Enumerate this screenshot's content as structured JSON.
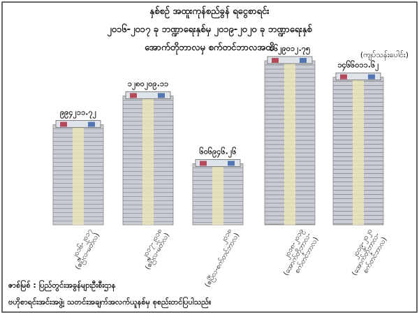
{
  "chart_data": {
    "type": "stack",
    "title": [
      "နှစ်စဉ် အထူးကုန်စည်ခွန် ရငွေစာရင်း",
      "၂၀၁၆-၂၀၁၇ ခု ဘဏ္ဍာရေးနှစ်မှ ၂၀၁၉-၂၀၂၀ ခု ဘဏ္ဍာရေးနှစ်",
      "အောက်တိုဘာလမှ စက်တင်ဘာလအထိ"
    ],
    "unit": "(ကျပ်သန်းပေါင်း)",
    "categories": [
      [
        "၂၀၁၆-၂၀၁၇",
        "(ဧပြီလ-မတ်လ)"
      ],
      [
        "၂၀၁၇-၂၀၁၈",
        "(ဧပြီလ-မတ်လ)"
      ],
      [
        "၂၀၁၈",
        "(ဧပြီလ-စက်တင်ဘာလ)"
      ],
      [
        "၂၀၁၈-၂၀၁၉",
        "(အောက်တိုဘာလ-",
        "စက်တင်ဘာလ)"
      ],
      [
        "၂၀၁၉-၂၀၂၀",
        "(အောက်တိုဘာလ-",
        "စက်တင်ဘာလ)"
      ]
    ],
    "values": [
      994211.72,
      1280209.11,
      606946.26,
      1629012.75,
      1466011.62
    ],
    "value_labels": [
      "၉၉၄၂၁၁.၇၂",
      "၁၂၈၀၂၀၉.၁၁",
      "၆၀၆၉၄၆.၂၆",
      "၁၆၂၉၀၁၂.၇၅",
      "၁၄၆၆၀၁၁.၆၂"
    ],
    "color": "#c9ccd2",
    "source": [
      "ဇာစ်မြစ် : ပြည်တွင်းအခွန်များဦးစီးဌာန",
      "ဗဟိုစာရင်းအင်းအဖွဲ့၊ သတင်းအချက်အလက်ယူနစ်မှ စုစည်းတင်ပြပါသည်။"
    ]
  }
}
